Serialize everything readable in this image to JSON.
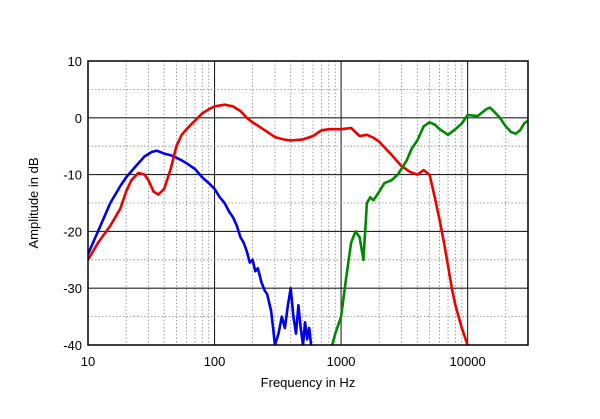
{
  "chart_data": {
    "type": "line",
    "title": "",
    "xlabel": "Frequency in Hz",
    "ylabel": "Amplitude in dB",
    "x_scale": "log",
    "xlim": [
      10,
      30000
    ],
    "ylim": [
      -40,
      10
    ],
    "grid": true,
    "legend": "none",
    "x_ticks": [
      {
        "value": 10,
        "label": "10"
      },
      {
        "value": 100,
        "label": "100"
      },
      {
        "value": 1000,
        "label": "1000"
      },
      {
        "value": 10000,
        "label": "10000"
      }
    ],
    "y_ticks": [
      {
        "value": 10,
        "label": "10"
      },
      {
        "value": 0,
        "label": "0"
      },
      {
        "value": -10,
        "label": "-10"
      },
      {
        "value": -20,
        "label": "-20"
      },
      {
        "value": -30,
        "label": "-30"
      },
      {
        "value": -40,
        "label": "-40"
      }
    ],
    "series": [
      {
        "color": "#0000ee",
        "points": [
          [
            10,
            -24
          ],
          [
            12,
            -20
          ],
          [
            15,
            -15
          ],
          [
            18,
            -12
          ],
          [
            20,
            -10.5
          ],
          [
            25,
            -8
          ],
          [
            28,
            -6.8
          ],
          [
            32,
            -6.0
          ],
          [
            35,
            -5.8
          ],
          [
            40,
            -6.3
          ],
          [
            45,
            -6.6
          ],
          [
            50,
            -7.0
          ],
          [
            55,
            -7.5
          ],
          [
            60,
            -8.0
          ],
          [
            70,
            -9.0
          ],
          [
            80,
            -10.5
          ],
          [
            90,
            -11.5
          ],
          [
            100,
            -12.5
          ],
          [
            110,
            -14
          ],
          [
            120,
            -15
          ],
          [
            130,
            -16.5
          ],
          [
            140,
            -17.5
          ],
          [
            150,
            -19
          ],
          [
            160,
            -21
          ],
          [
            170,
            -22
          ],
          [
            180,
            -23.5
          ],
          [
            190,
            -25.5
          ],
          [
            200,
            -25
          ],
          [
            210,
            -27
          ],
          [
            220,
            -26.5
          ],
          [
            235,
            -29
          ],
          [
            250,
            -30.5
          ],
          [
            260,
            -31
          ],
          [
            270,
            -32.5
          ],
          [
            280,
            -34
          ],
          [
            290,
            -37
          ],
          [
            300,
            -40
          ],
          [
            320,
            -38
          ],
          [
            340,
            -35
          ],
          [
            360,
            -37
          ],
          [
            380,
            -33
          ],
          [
            400,
            -30
          ],
          [
            420,
            -35
          ],
          [
            440,
            -38
          ],
          [
            460,
            -33
          ],
          [
            480,
            -37
          ],
          [
            500,
            -40
          ],
          [
            520,
            -36
          ],
          [
            540,
            -39
          ],
          [
            560,
            -37
          ],
          [
            580,
            -40
          ]
        ]
      },
      {
        "color": "#ee0000",
        "points": [
          [
            10,
            -25
          ],
          [
            12,
            -22
          ],
          [
            15,
            -19
          ],
          [
            18,
            -16
          ],
          [
            20,
            -13
          ],
          [
            22,
            -11
          ],
          [
            25,
            -9.7
          ],
          [
            28,
            -10
          ],
          [
            30,
            -11
          ],
          [
            33,
            -13
          ],
          [
            36,
            -13.5
          ],
          [
            40,
            -12.5
          ],
          [
            45,
            -9
          ],
          [
            50,
            -5
          ],
          [
            55,
            -3
          ],
          [
            60,
            -2
          ],
          [
            70,
            -0.5
          ],
          [
            80,
            0.8
          ],
          [
            90,
            1.5
          ],
          [
            100,
            2.0
          ],
          [
            120,
            2.3
          ],
          [
            140,
            2.0
          ],
          [
            160,
            1.2
          ],
          [
            180,
            0
          ],
          [
            200,
            -0.8
          ],
          [
            250,
            -2.2
          ],
          [
            300,
            -3.4
          ],
          [
            350,
            -3.8
          ],
          [
            400,
            -4.0
          ],
          [
            500,
            -3.8
          ],
          [
            600,
            -3.2
          ],
          [
            700,
            -2.2
          ],
          [
            800,
            -2.0
          ],
          [
            1000,
            -2.0
          ],
          [
            1200,
            -1.8
          ],
          [
            1400,
            -3.2
          ],
          [
            1600,
            -3.0
          ],
          [
            1800,
            -3.5
          ],
          [
            2000,
            -4.2
          ],
          [
            2500,
            -6.5
          ],
          [
            3000,
            -8.5
          ],
          [
            3500,
            -9.5
          ],
          [
            4000,
            -10
          ],
          [
            4500,
            -9.2
          ],
          [
            5000,
            -10
          ],
          [
            5500,
            -14
          ],
          [
            6000,
            -18
          ],
          [
            6500,
            -22
          ],
          [
            7000,
            -26
          ],
          [
            7500,
            -30
          ],
          [
            8000,
            -33
          ],
          [
            9000,
            -37
          ],
          [
            10000,
            -40
          ]
        ]
      },
      {
        "color": "#008800",
        "points": [
          [
            850,
            -40
          ],
          [
            900,
            -38
          ],
          [
            1000,
            -35
          ],
          [
            1100,
            -28
          ],
          [
            1200,
            -22
          ],
          [
            1300,
            -20
          ],
          [
            1400,
            -21
          ],
          [
            1500,
            -25
          ],
          [
            1600,
            -15
          ],
          [
            1700,
            -14
          ],
          [
            1800,
            -14.5
          ],
          [
            2000,
            -13
          ],
          [
            2200,
            -11.5
          ],
          [
            2500,
            -11
          ],
          [
            2800,
            -10
          ],
          [
            3000,
            -9
          ],
          [
            3300,
            -7.5
          ],
          [
            3600,
            -5.5
          ],
          [
            4000,
            -4
          ],
          [
            4500,
            -1.5
          ],
          [
            5000,
            -0.8
          ],
          [
            5500,
            -1.2
          ],
          [
            6000,
            -2
          ],
          [
            7000,
            -3
          ],
          [
            8000,
            -2
          ],
          [
            9000,
            -1
          ],
          [
            10000,
            0.5
          ],
          [
            12000,
            0.3
          ],
          [
            14000,
            1.5
          ],
          [
            15000,
            1.8
          ],
          [
            16000,
            1.2
          ],
          [
            18000,
            0
          ],
          [
            20000,
            -1.5
          ],
          [
            22000,
            -2.5
          ],
          [
            24000,
            -2.8
          ],
          [
            26000,
            -2.2
          ],
          [
            28000,
            -1.0
          ],
          [
            30000,
            -0.5
          ]
        ]
      }
    ]
  }
}
